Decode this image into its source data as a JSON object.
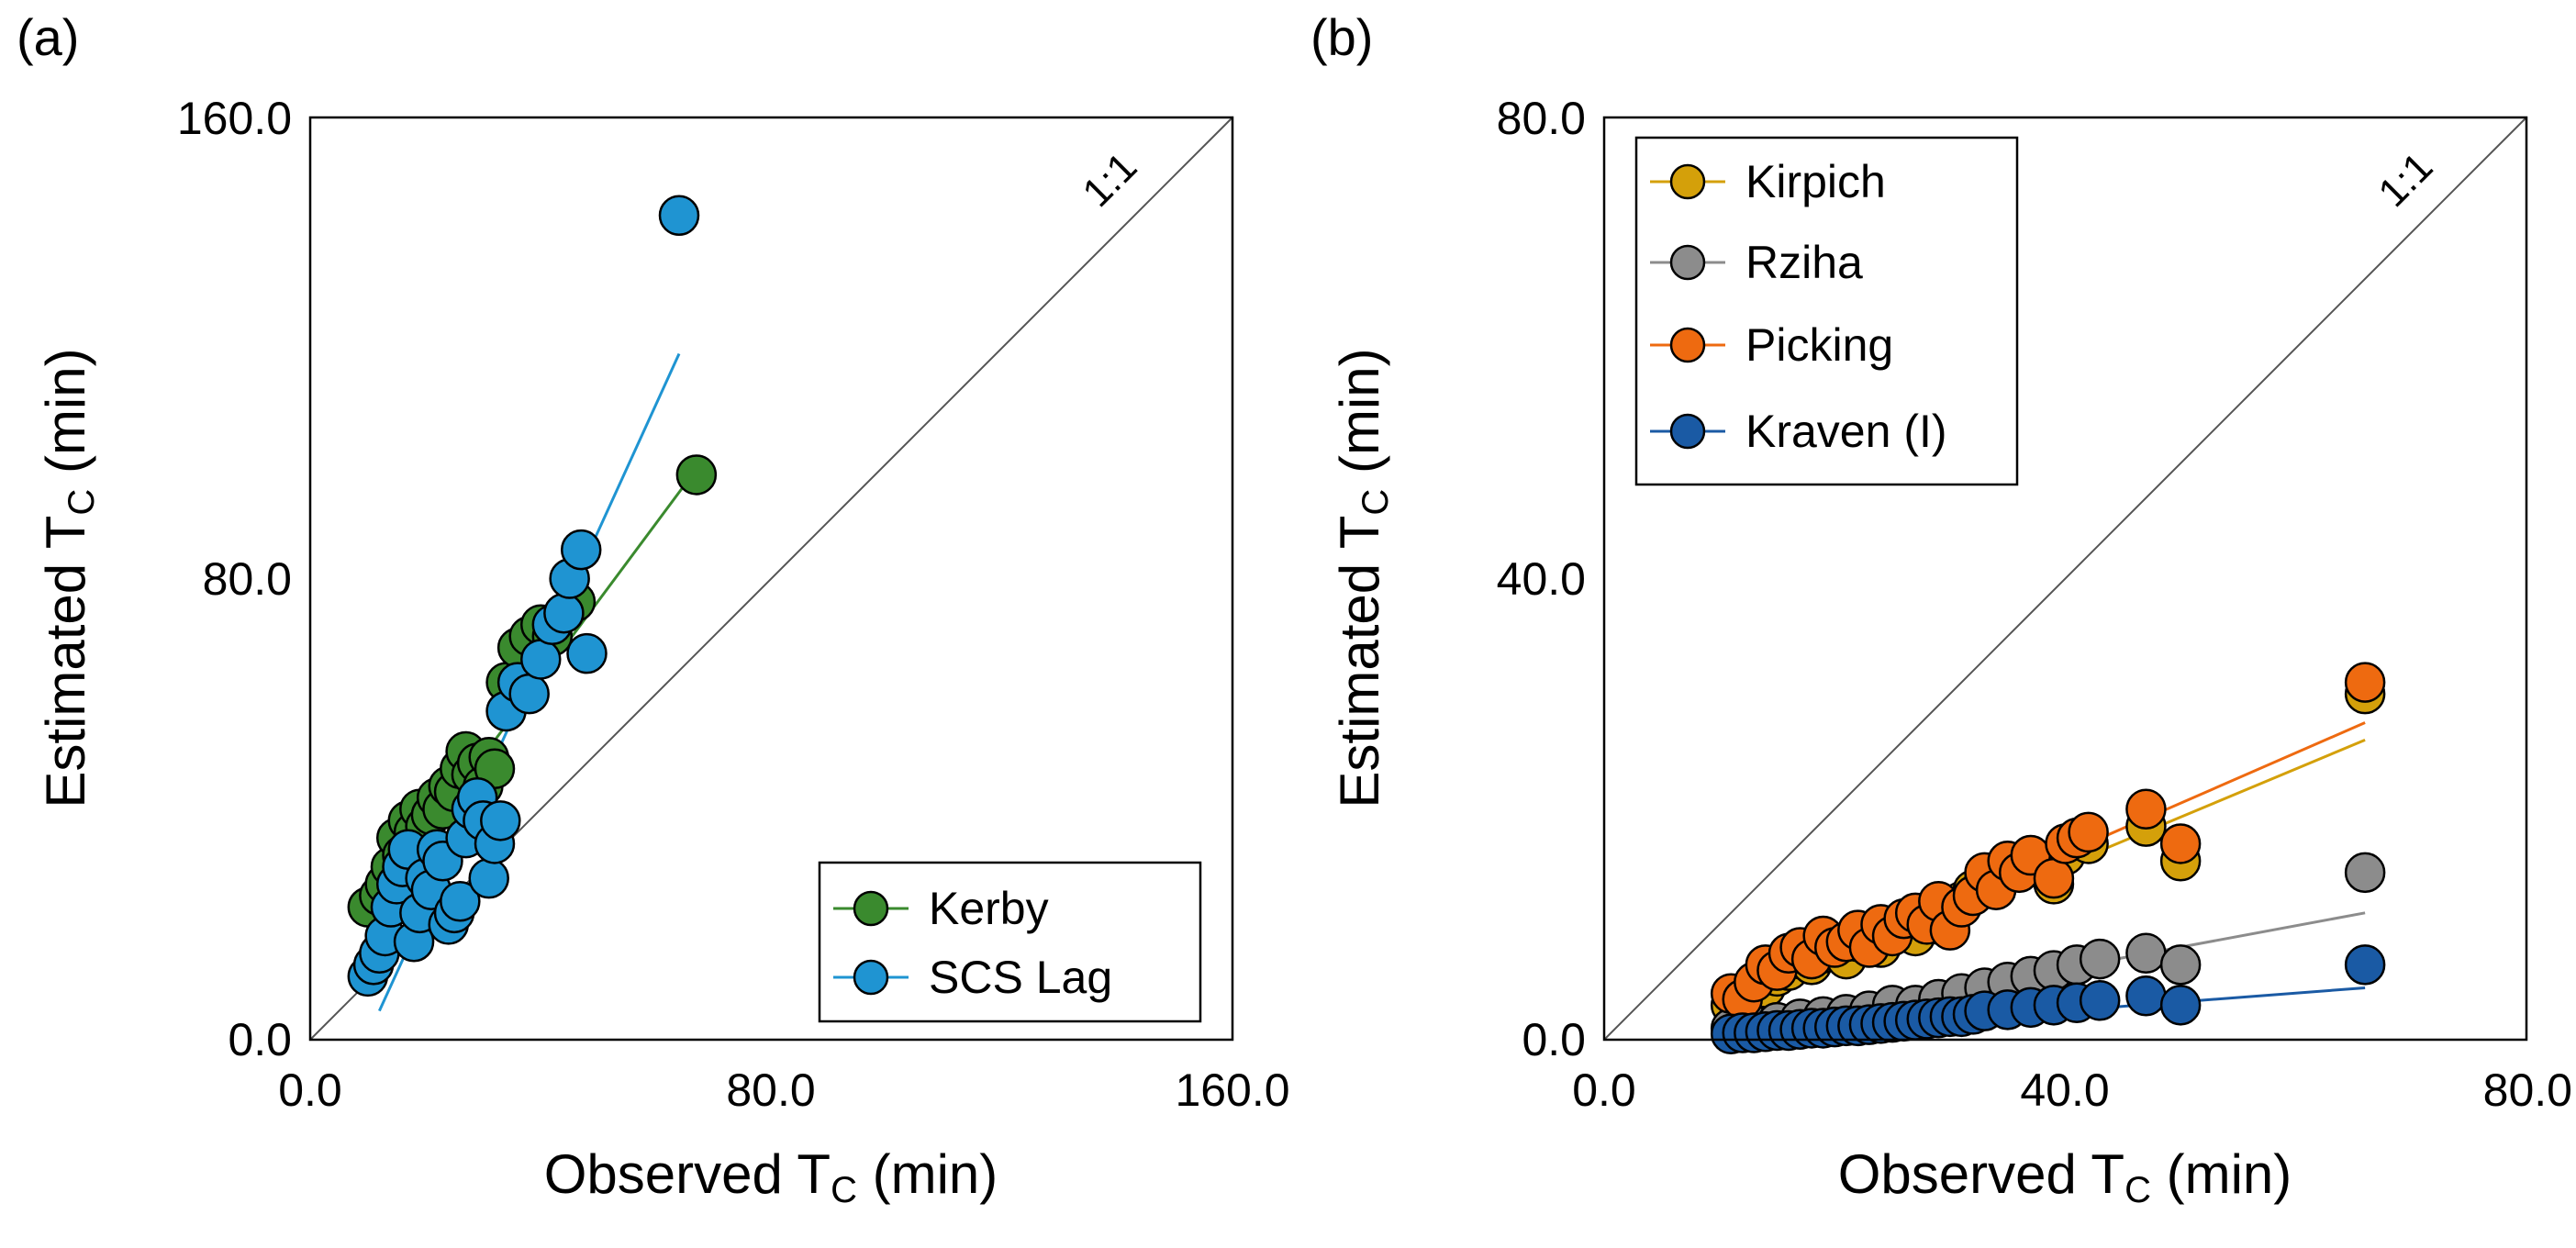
{
  "chart_data": [
    {
      "type": "scatter",
      "panel_label": "(a)",
      "xlabel_main": "Observed T",
      "xlabel_sub": "C",
      "xlabel_unit": " (min)",
      "ylabel_main": "Estimated T",
      "ylabel_sub": "C",
      "ylabel_unit": " (min)",
      "xlim": [
        0,
        160
      ],
      "ylim": [
        0,
        160
      ],
      "xticks": [
        "0.0",
        "80.0",
        "160.0"
      ],
      "yticks": [
        "0.0",
        "80.0",
        "160.0"
      ],
      "reference_line_label": "1:1",
      "legend_position": "bottom-right",
      "series": [
        {
          "name": "Kerby",
          "color": "#3a8a2e",
          "trend": [
            [
              12,
              25
            ],
            [
              67,
              99
            ]
          ],
          "points": [
            [
              10,
              23
            ],
            [
              12,
              25
            ],
            [
              13,
              27
            ],
            [
              14,
              30
            ],
            [
              15,
              35
            ],
            [
              16,
              32
            ],
            [
              17,
              38
            ],
            [
              18,
              36
            ],
            [
              19,
              40
            ],
            [
              20,
              37
            ],
            [
              21,
              39
            ],
            [
              22,
              42
            ],
            [
              23,
              40
            ],
            [
              24,
              44
            ],
            [
              25,
              43
            ],
            [
              26,
              47
            ],
            [
              27,
              50
            ],
            [
              28,
              46
            ],
            [
              29,
              48
            ],
            [
              30,
              44
            ],
            [
              31,
              49
            ],
            [
              32,
              47
            ],
            [
              34,
              62
            ],
            [
              36,
              68
            ],
            [
              38,
              70
            ],
            [
              40,
              72
            ],
            [
              42,
              70
            ],
            [
              44,
              74
            ],
            [
              46,
              76
            ],
            [
              67,
              98
            ]
          ]
        },
        {
          "name": "SCS Lag",
          "color": "#1f94d2",
          "trend": [
            [
              12,
              5
            ],
            [
              64,
              119
            ]
          ],
          "points": [
            [
              10,
              11
            ],
            [
              11,
              13
            ],
            [
              12,
              15
            ],
            [
              13,
              18
            ],
            [
              14,
              23
            ],
            [
              15,
              27
            ],
            [
              16,
              30
            ],
            [
              17,
              33
            ],
            [
              18,
              17
            ],
            [
              19,
              22
            ],
            [
              20,
              28
            ],
            [
              21,
              26
            ],
            [
              22,
              33
            ],
            [
              23,
              31
            ],
            [
              24,
              20
            ],
            [
              25,
              22
            ],
            [
              26,
              24
            ],
            [
              27,
              35
            ],
            [
              28,
              40
            ],
            [
              29,
              42
            ],
            [
              30,
              38
            ],
            [
              31,
              28
            ],
            [
              32,
              34
            ],
            [
              33,
              38
            ],
            [
              34,
              57
            ],
            [
              36,
              62
            ],
            [
              38,
              60
            ],
            [
              40,
              66
            ],
            [
              42,
              72
            ],
            [
              44,
              74
            ],
            [
              45,
              80
            ],
            [
              47,
              85
            ],
            [
              48,
              67
            ],
            [
              64,
              143
            ]
          ]
        }
      ]
    },
    {
      "type": "scatter",
      "panel_label": "(b)",
      "xlabel_main": "Observed T",
      "xlabel_sub": "C",
      "xlabel_unit": " (min)",
      "ylabel_main": "Estimated T",
      "ylabel_sub": "C",
      "ylabel_unit": " (min)",
      "xlim": [
        0,
        80
      ],
      "ylim": [
        0,
        80
      ],
      "xticks": [
        "0.0",
        "40.0",
        "80.0"
      ],
      "yticks": [
        "0.0",
        "40.0",
        "80.0"
      ],
      "reference_line_label": "1:1",
      "legend_position": "top-left",
      "series": [
        {
          "name": "Kirpich",
          "color": "#d4a00a",
          "trend": [
            [
              11,
              3
            ],
            [
              66,
              26
            ]
          ],
          "points": [
            [
              11,
              3.0
            ],
            [
              13,
              4.0
            ],
            [
              14,
              4.5
            ],
            [
              15,
              5.5
            ],
            [
              16,
              6.0
            ],
            [
              17,
              7.0
            ],
            [
              18,
              6.5
            ],
            [
              19,
              7.5
            ],
            [
              20,
              8.0
            ],
            [
              21,
              7.0
            ],
            [
              22,
              8.5
            ],
            [
              23,
              9.0
            ],
            [
              24,
              8.0
            ],
            [
              25,
              9.5
            ],
            [
              26,
              10.0
            ],
            [
              27,
              9.0
            ],
            [
              28,
              11.0
            ],
            [
              29,
              10.0
            ],
            [
              30,
              11.5
            ],
            [
              31,
              12.0
            ],
            [
              32,
              13.0
            ],
            [
              33,
              14.0
            ],
            [
              34,
              13.5
            ],
            [
              35,
              15.0
            ],
            [
              37,
              15.5
            ],
            [
              39,
              13.5
            ],
            [
              40,
              16.0
            ],
            [
              42,
              17.0
            ],
            [
              47,
              18.5
            ],
            [
              50,
              15.5
            ],
            [
              66,
              30.0
            ]
          ]
        },
        {
          "name": "Rziha",
          "color": "#8c8c8c",
          "trend": [
            [
              11,
              0.8
            ],
            [
              66,
              11
            ]
          ],
          "points": [
            [
              11,
              1.0
            ],
            [
              13,
              1.2
            ],
            [
              15,
              1.5
            ],
            [
              17,
              1.8
            ],
            [
              19,
              2.0
            ],
            [
              21,
              2.2
            ],
            [
              23,
              2.5
            ],
            [
              25,
              3.0
            ],
            [
              27,
              3.0
            ],
            [
              29,
              3.5
            ],
            [
              31,
              4.0
            ],
            [
              33,
              4.5
            ],
            [
              35,
              5.0
            ],
            [
              37,
              5.5
            ],
            [
              39,
              6.0
            ],
            [
              41,
              6.5
            ],
            [
              43,
              7.0
            ],
            [
              47,
              7.5
            ],
            [
              50,
              6.5
            ],
            [
              66,
              14.5
            ]
          ]
        },
        {
          "name": "Picking",
          "color": "#ee6a10",
          "trend": [
            [
              11,
              3.5
            ],
            [
              66,
              27.5
            ]
          ],
          "points": [
            [
              11,
              4.0
            ],
            [
              12,
              3.5
            ],
            [
              13,
              5.0
            ],
            [
              14,
              6.5
            ],
            [
              15,
              6.0
            ],
            [
              16,
              7.5
            ],
            [
              17,
              8.0
            ],
            [
              18,
              7.0
            ],
            [
              19,
              9.0
            ],
            [
              20,
              8.0
            ],
            [
              21,
              8.5
            ],
            [
              22,
              9.5
            ],
            [
              23,
              8.0
            ],
            [
              24,
              10.0
            ],
            [
              25,
              9.0
            ],
            [
              26,
              10.5
            ],
            [
              27,
              11.0
            ],
            [
              28,
              10.0
            ],
            [
              29,
              12.0
            ],
            [
              30,
              9.5
            ],
            [
              31,
              11.5
            ],
            [
              32,
              12.5
            ],
            [
              33,
              14.5
            ],
            [
              34,
              13.0
            ],
            [
              35,
              15.5
            ],
            [
              36,
              14.5
            ],
            [
              37,
              16.0
            ],
            [
              39,
              14.0
            ],
            [
              40,
              17.0
            ],
            [
              41,
              17.5
            ],
            [
              42,
              18.0
            ],
            [
              47,
              20.0
            ],
            [
              50,
              17.0
            ],
            [
              66,
              31.0
            ]
          ]
        },
        {
          "name": "Kraven (I)",
          "color": "#1a5aa4",
          "trend": [
            [
              11,
              0.3
            ],
            [
              66,
              4.5
            ]
          ],
          "points": [
            [
              11,
              0.5
            ],
            [
              12,
              0.6
            ],
            [
              13,
              0.6
            ],
            [
              14,
              0.7
            ],
            [
              15,
              0.8
            ],
            [
              16,
              0.8
            ],
            [
              17,
              0.9
            ],
            [
              18,
              1.0
            ],
            [
              19,
              1.0
            ],
            [
              20,
              1.1
            ],
            [
              21,
              1.2
            ],
            [
              22,
              1.2
            ],
            [
              23,
              1.3
            ],
            [
              24,
              1.4
            ],
            [
              25,
              1.5
            ],
            [
              26,
              1.6
            ],
            [
              27,
              1.7
            ],
            [
              28,
              1.8
            ],
            [
              29,
              1.9
            ],
            [
              30,
              2.0
            ],
            [
              31,
              2.0
            ],
            [
              32,
              2.2
            ],
            [
              33,
              2.5
            ],
            [
              35,
              2.6
            ],
            [
              37,
              2.8
            ],
            [
              39,
              3.0
            ],
            [
              41,
              3.2
            ],
            [
              43,
              3.4
            ],
            [
              47,
              3.8
            ],
            [
              50,
              3.0
            ],
            [
              66,
              6.5
            ]
          ]
        }
      ]
    }
  ]
}
